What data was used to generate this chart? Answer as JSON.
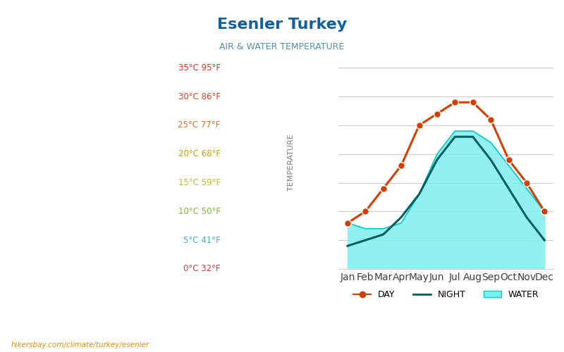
{
  "title": "Esenler Turkey",
  "subtitle": "AIR & WATER TEMPERATURE",
  "months": [
    "Jan",
    "Feb",
    "Mar",
    "Apr",
    "May",
    "Jun",
    "Jul",
    "Aug",
    "Sep",
    "Oct",
    "Nov",
    "Dec"
  ],
  "day_temp": [
    8,
    10,
    14,
    18,
    25,
    27,
    29,
    29,
    26,
    19,
    15,
    10
  ],
  "night_temp": [
    4,
    5,
    6,
    9,
    13,
    19,
    23,
    23,
    19,
    14,
    9,
    5
  ],
  "water_temp": [
    8,
    7,
    7,
    8,
    13,
    20,
    24,
    24,
    22,
    18,
    14,
    10
  ],
  "water_bottom": [
    0,
    0,
    0,
    0,
    0,
    0,
    0,
    0,
    0,
    0,
    0,
    0
  ],
  "yticks": [
    0,
    5,
    10,
    15,
    20,
    25,
    30,
    35
  ],
  "ytick_labels_celsius": [
    "0°C",
    "5°C",
    "10°C",
    "15°C",
    "20°C",
    "25°C",
    "30°C",
    "35°C"
  ],
  "ytick_labels_fahrenheit": [
    "32°F",
    "41°F",
    "50°F",
    "59°F",
    "68°F",
    "77°F",
    "86°F",
    "95°F"
  ],
  "ytick_label_colors": [
    "#d04040",
    "#40b0c0",
    "#80b830",
    "#b8c020",
    "#c8a000",
    "#e07020",
    "#e04020",
    "#e03020"
  ],
  "ylim": [
    0,
    37
  ],
  "day_color": "#d04000",
  "night_color": "#006060",
  "water_fill_color": "#80eeee",
  "water_line_color": "#00cccc",
  "grid_color": "#cccccc",
  "bg_color": "#ffffff",
  "title_color": "#1060a0",
  "subtitle_color": "#5090a0",
  "footer_text": "hikersbay.com/climate/turkey/esenler",
  "ylabel": "TEMPERATURE",
  "ylabel_color": "#808080"
}
